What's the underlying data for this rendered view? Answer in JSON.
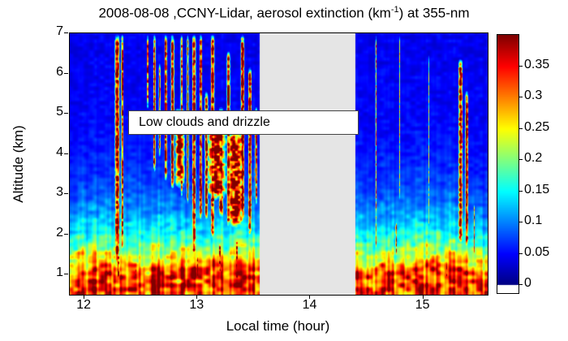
{
  "title": {
    "prefix": "2008-08-08 ,CCNY-Lidar, aerosol extinction (km",
    "superscript": "-1",
    "suffix": ") at 355-nm"
  },
  "annotation": {
    "text": "Low clouds and drizzle"
  },
  "chart_data": {
    "type": "heatmap",
    "title": "2008-08-08 ,CCNY-Lidar, aerosol extinction (km^-1) at 355-nm",
    "xlabel": "Local time (hour)",
    "ylabel": "Altitude (km)",
    "x_range": [
      11.87,
      15.57
    ],
    "y_range": [
      0.5,
      7.0
    ],
    "x_ticks": [
      {
        "label": "12",
        "value": 12
      },
      {
        "label": "13",
        "value": 13
      },
      {
        "label": "14",
        "value": 14
      },
      {
        "label": "15",
        "value": 15
      }
    ],
    "y_ticks": [
      {
        "label": "1",
        "value": 1
      },
      {
        "label": "2",
        "value": 2
      },
      {
        "label": "3",
        "value": 3
      },
      {
        "label": "4",
        "value": 4
      },
      {
        "label": "5",
        "value": 5
      },
      {
        "label": "6",
        "value": 6
      },
      {
        "label": "7",
        "value": 7
      }
    ],
    "colorbar": {
      "colormap": "jet",
      "vmin": 0,
      "vmax": 0.4,
      "units": "km^-1",
      "ticks": [
        {
          "label": "0",
          "value": 0
        },
        {
          "label": "0.05",
          "value": 0.05
        },
        {
          "label": "0.1",
          "value": 0.1
        },
        {
          "label": "0.15",
          "value": 0.15
        },
        {
          "label": "0.2",
          "value": 0.2
        },
        {
          "label": "0.25",
          "value": 0.25
        },
        {
          "label": "0.3",
          "value": 0.3
        },
        {
          "label": "0.35",
          "value": 0.35
        }
      ]
    },
    "data_gap_hours": [
      13.55,
      14.4
    ],
    "annotation": {
      "text": "Low clouds and drizzle",
      "t_range": [
        12.41,
        14.33
      ],
      "z_range": [
        4.45,
        5.05
      ]
    },
    "background_field": {
      "clear_air_extinction": 0.03,
      "clear_air_mottle": 0.026,
      "boundary_layer_peak_extinction": 0.27,
      "boundary_layer_base_km": 1.0,
      "boundary_layer_scale_km": 0.95
    },
    "cloud_columns": [
      [
        12.29,
        0.025,
        1.2,
        7.0,
        0.42
      ],
      [
        12.335,
        0.012,
        1.6,
        7.0,
        0.42
      ],
      [
        12.05,
        0.008,
        0.6,
        1.15,
        0.33
      ],
      [
        12.3,
        0.012,
        0.7,
        1.7,
        0.4
      ],
      [
        12.455,
        0.008,
        0.8,
        1.35,
        0.36
      ],
      [
        12.56,
        0.008,
        5.2,
        7.0,
        0.4
      ],
      [
        12.62,
        0.012,
        3.6,
        7.0,
        0.42
      ],
      [
        12.665,
        0.01,
        4.0,
        6.3,
        0.4
      ],
      [
        12.72,
        0.014,
        3.4,
        7.0,
        0.42
      ],
      [
        12.78,
        0.018,
        3.2,
        7.0,
        0.42
      ],
      [
        12.845,
        0.05,
        3.2,
        5.2,
        0.42
      ],
      [
        12.86,
        0.012,
        3.0,
        7.0,
        0.4
      ],
      [
        12.915,
        0.01,
        2.8,
        7.0,
        0.42
      ],
      [
        12.97,
        0.02,
        1.5,
        7.0,
        0.42
      ],
      [
        13.0,
        0.01,
        0.8,
        1.6,
        0.4
      ],
      [
        13.03,
        0.014,
        2.4,
        7.0,
        0.42
      ],
      [
        13.08,
        0.018,
        2.4,
        5.6,
        0.42
      ],
      [
        13.135,
        0.02,
        1.9,
        7.0,
        0.42
      ],
      [
        13.17,
        0.1,
        2.9,
        4.9,
        0.4
      ],
      [
        13.2,
        0.014,
        0.9,
        1.9,
        0.4
      ],
      [
        13.21,
        0.025,
        2.4,
        5.2,
        0.42
      ],
      [
        13.275,
        0.018,
        2.2,
        6.6,
        0.42
      ],
      [
        13.335,
        0.09,
        2.2,
        4.6,
        0.4
      ],
      [
        13.35,
        0.012,
        0.8,
        2.0,
        0.4
      ],
      [
        13.4,
        0.02,
        2.4,
        7.0,
        0.42
      ],
      [
        13.465,
        0.018,
        2.0,
        6.2,
        0.42
      ],
      [
        13.52,
        0.012,
        2.8,
        5.2,
        0.4
      ],
      [
        14.58,
        0.006,
        1.6,
        7.0,
        0.3
      ],
      [
        14.76,
        0.008,
        1.4,
        2.4,
        0.4
      ],
      [
        14.79,
        0.004,
        2.8,
        7.0,
        0.22
      ],
      [
        15.05,
        0.004,
        2.0,
        6.5,
        0.2
      ],
      [
        15.21,
        0.008,
        0.8,
        1.5,
        0.38
      ],
      [
        15.33,
        0.022,
        1.8,
        6.4,
        0.42
      ],
      [
        15.385,
        0.016,
        1.7,
        5.6,
        0.42
      ],
      [
        15.45,
        0.007,
        1.4,
        2.8,
        0.36
      ]
    ]
  }
}
